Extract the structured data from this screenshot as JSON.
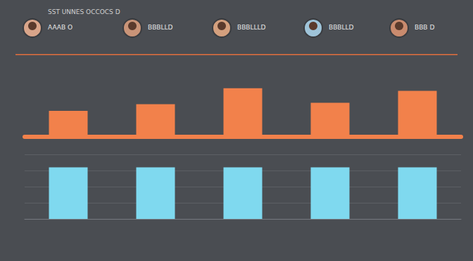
{
  "header": {
    "title": "SST UNNES OCCOCS D",
    "people": [
      "AAAB O",
      "BBBLLD",
      "BBBLLLD",
      "BBBLLD",
      "BBB D"
    ]
  },
  "chart_data": [
    {
      "type": "bar",
      "categories": [
        null,
        null,
        null,
        null,
        null
      ],
      "values": [
        39,
        49,
        73,
        51,
        69
      ],
      "color": "#f2814b",
      "ylim": [
        0,
        100
      ],
      "yticks": [
        0,
        25,
        50,
        75,
        100
      ],
      "grid": false,
      "tick_labels": false
    },
    {
      "type": "bar",
      "categories": [
        null,
        null,
        null,
        null,
        null
      ],
      "values": [
        80,
        80,
        80,
        80,
        80
      ],
      "color": "#7fd9ef",
      "ylim": [
        0,
        100
      ],
      "yticks": [
        0,
        25,
        50,
        75,
        100
      ],
      "grid": true,
      "tick_labels": false
    }
  ]
}
